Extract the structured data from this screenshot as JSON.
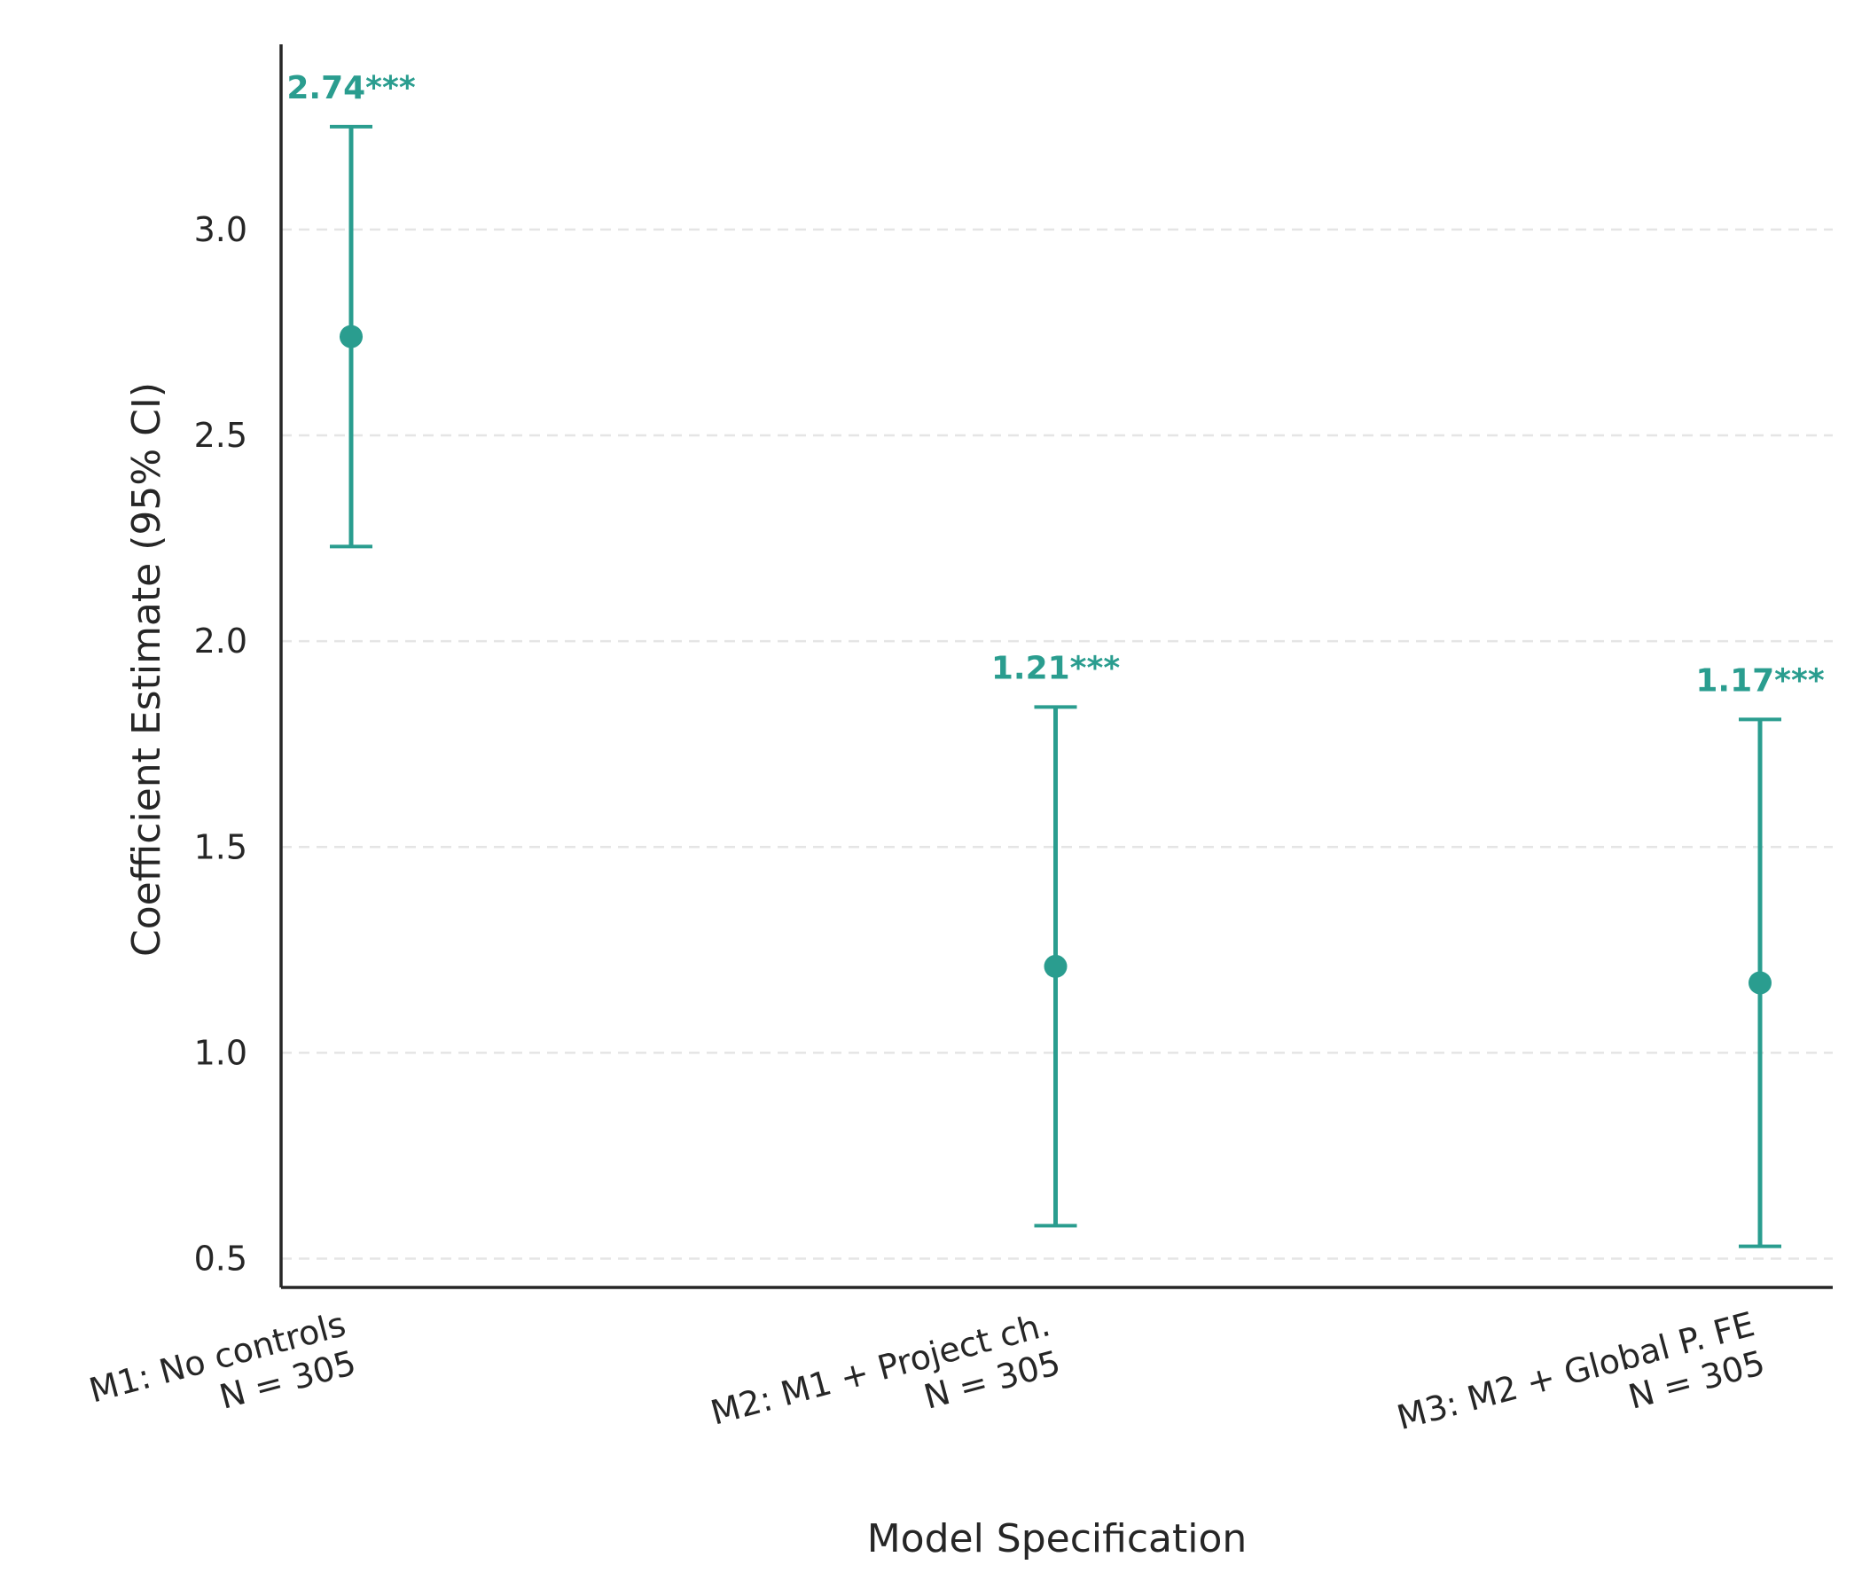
{
  "chart_data": {
    "type": "errorbar",
    "title": "",
    "xlabel": "Model Specification",
    "ylabel": "Coefficient Estimate (95% CI)",
    "ylim": [
      0.43,
      3.45
    ],
    "yticks": [
      "0.5",
      "1.0",
      "1.5",
      "2.0",
      "2.5",
      "3.0"
    ],
    "grid": "horizontal dashed",
    "color": "#2a9d8f",
    "categories": [
      {
        "line1": "M1: No controls",
        "line2": "N = 305"
      },
      {
        "line1": "M2: M1 + Project ch.",
        "line2": "N = 305"
      },
      {
        "line1": "M3: M2 + Global P. FE",
        "line2": "N = 305"
      }
    ],
    "estimates": [
      2.74,
      1.21,
      1.17
    ],
    "ci_lower": [
      2.23,
      0.58,
      0.53
    ],
    "ci_upper": [
      3.25,
      1.84,
      1.81
    ],
    "labels": [
      "2.74***",
      "1.21***",
      "1.17***"
    ]
  }
}
